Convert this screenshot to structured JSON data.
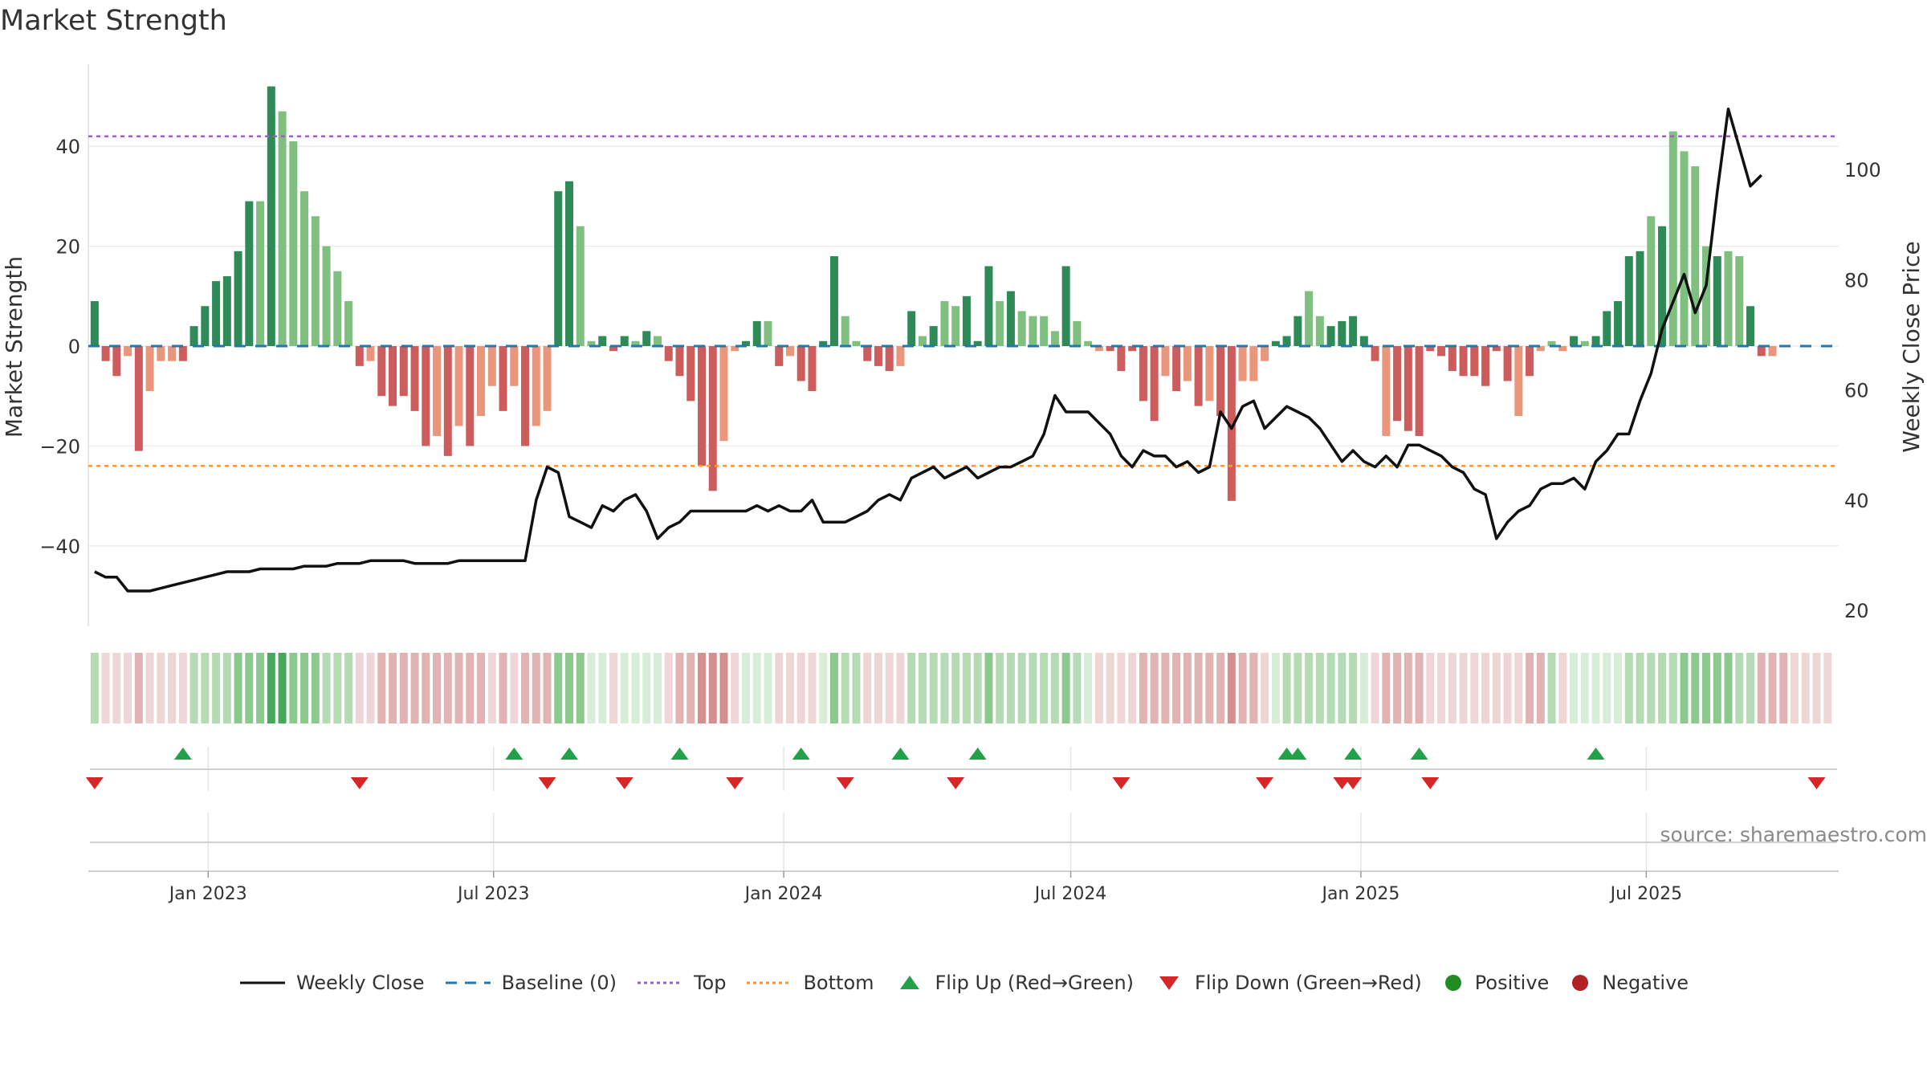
{
  "page": {
    "title": "Market Strength",
    "source": "source: sharemaestro.com"
  },
  "colors": {
    "pos_strong": "#2e8b57",
    "pos_weak": "#7fbf7f",
    "neg_strong": "#cd5c5c",
    "neg_weak": "#e9967a",
    "close": "#111111",
    "baseline": "#1f77b4",
    "top": "#9467bd",
    "bottom": "#ff9933",
    "flip_up": "#22a04a",
    "flip_down": "#d62728",
    "positive": "#228b22",
    "negative": "#b22222"
  },
  "chart_data": {
    "type": "bar",
    "title": "Market Strength",
    "ylabel": "Market Strength",
    "y2label": "Weekly Close Price",
    "ylim": [
      -56,
      56
    ],
    "y2lim": [
      15,
      120
    ],
    "yticks": [
      "40",
      "20",
      "0",
      "−40"
    ],
    "yticks_extra": [
      "−20"
    ],
    "y2ticks": [
      "100",
      "80",
      "60",
      "40",
      "20"
    ],
    "top_line": 42,
    "bottom_line": -24,
    "x_start": "2022-10-17",
    "x_end": "2025-10-31",
    "xticks": [
      {
        "date": "2023-01-01",
        "label": "Jan 2023"
      },
      {
        "date": "2023-07-01",
        "label": "Jul 2023"
      },
      {
        "date": "2024-01-01",
        "label": "Jan 2024"
      },
      {
        "date": "2024-07-01",
        "label": "Jul 2024"
      },
      {
        "date": "2025-01-01",
        "label": "Jan 2025"
      },
      {
        "date": "2025-07-01",
        "label": "Jul 2025"
      }
    ],
    "week_dates": [
      "2022-10-21",
      "2022-10-28",
      "2022-11-04",
      "2022-11-11",
      "2022-11-18",
      "2022-11-25",
      "2022-12-02",
      "2022-12-09",
      "2022-12-16",
      "2022-12-23",
      "2022-12-30",
      "2023-01-06",
      "2023-01-13",
      "2023-01-20",
      "2023-01-27",
      "2023-02-03",
      "2023-02-10",
      "2023-02-17",
      "2023-02-24",
      "2023-03-03",
      "2023-03-10",
      "2023-03-17",
      "2023-03-24",
      "2023-03-31",
      "2023-04-07",
      "2023-04-14",
      "2023-04-21",
      "2023-04-28",
      "2023-05-05",
      "2023-05-12",
      "2023-05-19",
      "2023-05-26",
      "2023-06-02",
      "2023-06-09",
      "2023-06-16",
      "2023-06-23",
      "2023-06-30",
      "2023-07-07",
      "2023-07-14",
      "2023-07-21",
      "2023-07-28",
      "2023-08-04",
      "2023-08-11",
      "2023-08-18",
      "2023-08-25",
      "2023-09-01",
      "2023-09-08",
      "2023-09-15",
      "2023-09-22",
      "2023-09-29",
      "2023-10-06",
      "2023-10-13",
      "2023-10-20",
      "2023-10-27",
      "2023-11-03",
      "2023-11-10",
      "2023-11-17",
      "2023-11-24",
      "2023-12-01",
      "2023-12-08",
      "2023-12-15",
      "2023-12-22",
      "2023-12-29",
      "2024-01-05",
      "2024-01-12",
      "2024-01-19",
      "2024-01-26",
      "2024-02-02",
      "2024-02-09",
      "2024-02-16",
      "2024-02-23",
      "2024-03-01",
      "2024-03-08",
      "2024-03-15",
      "2024-03-22",
      "2024-03-29",
      "2024-04-05",
      "2024-04-12",
      "2024-04-19",
      "2024-04-26",
      "2024-05-03",
      "2024-05-10",
      "2024-05-17",
      "2024-05-24",
      "2024-05-31",
      "2024-06-07",
      "2024-06-14",
      "2024-06-21",
      "2024-06-28",
      "2024-07-05",
      "2024-07-12",
      "2024-07-19",
      "2024-07-26",
      "2024-08-02",
      "2024-08-09",
      "2024-08-16",
      "2024-08-23",
      "2024-08-30",
      "2024-09-06",
      "2024-09-13",
      "2024-09-20",
      "2024-09-27",
      "2024-10-04",
      "2024-10-11",
      "2024-10-18",
      "2024-10-25",
      "2024-11-01",
      "2024-11-08",
      "2024-11-15",
      "2024-11-22",
      "2024-11-29",
      "2024-12-06",
      "2024-12-13",
      "2024-12-20",
      "2024-12-27",
      "2025-01-03",
      "2025-01-10",
      "2025-01-17",
      "2025-01-24",
      "2025-01-31",
      "2025-02-07",
      "2025-02-14",
      "2025-02-21",
      "2025-02-28",
      "2025-03-07",
      "2025-03-14",
      "2025-03-21",
      "2025-03-28",
      "2025-04-04",
      "2025-04-11",
      "2025-04-18",
      "2025-04-25",
      "2025-05-02",
      "2025-05-09",
      "2025-05-16",
      "2025-05-23",
      "2025-05-30",
      "2025-06-06",
      "2025-06-13",
      "2025-06-20",
      "2025-06-27",
      "2025-07-04",
      "2025-07-11",
      "2025-07-18",
      "2025-07-25",
      "2025-08-01",
      "2025-08-08",
      "2025-08-15",
      "2025-08-22",
      "2025-08-29",
      "2025-09-05",
      "2025-09-12",
      "2025-09-19",
      "2025-09-26",
      "2025-10-03",
      "2025-10-10",
      "2025-10-17",
      "2025-10-24"
    ],
    "strength": [
      9,
      -3,
      -6,
      -2,
      -21,
      -9,
      -3,
      -3,
      -3,
      4,
      8,
      13,
      14,
      19,
      29,
      29,
      52,
      47,
      41,
      31,
      26,
      20,
      15,
      9,
      -4,
      -3,
      -10,
      -12,
      -10,
      -13,
      -20,
      -18,
      -22,
      -16,
      -20,
      -14,
      -8,
      -13,
      -8,
      -20,
      -16,
      -13,
      31,
      33,
      24,
      1,
      2,
      -1,
      2,
      1,
      3,
      2,
      -3,
      -6,
      -11,
      -24,
      -29,
      -19,
      -1,
      1,
      5,
      5,
      -4,
      -2,
      -7,
      -9,
      1,
      18,
      6,
      1,
      -3,
      -4,
      -5,
      -4,
      7,
      2,
      4,
      9,
      8,
      10,
      1,
      16,
      9,
      11,
      7,
      6,
      6,
      3,
      16,
      5,
      1,
      -1,
      -1,
      -5,
      -1,
      -11,
      -15,
      -6,
      -9,
      -7,
      -12,
      -11,
      -14,
      -31,
      -7,
      -7,
      -3,
      1,
      2,
      6,
      11,
      6,
      4,
      5,
      6,
      2,
      -3,
      -18,
      -15,
      -17,
      -18,
      -1,
      -2,
      -5,
      -6,
      -6,
      -8,
      -1,
      -7,
      -14,
      -6,
      -1,
      1,
      -1,
      2,
      1,
      2,
      7,
      9,
      18,
      19,
      26,
      24,
      43,
      39,
      36,
      20,
      18,
      19,
      18,
      8,
      -2,
      -2
    ],
    "bar_shade": [
      "s",
      "s",
      "s",
      "w",
      "s",
      "w",
      "w",
      "w",
      "s",
      "s",
      "s",
      "s",
      "s",
      "s",
      "s",
      "w",
      "s",
      "w",
      "w",
      "w",
      "w",
      "w",
      "w",
      "w",
      "s",
      "w",
      "s",
      "s",
      "s",
      "s",
      "s",
      "w",
      "s",
      "w",
      "s",
      "w",
      "w",
      "s",
      "w",
      "s",
      "w",
      "w",
      "s",
      "s",
      "w",
      "w",
      "s",
      "s",
      "s",
      "w",
      "s",
      "w",
      "s",
      "s",
      "s",
      "s",
      "s",
      "w",
      "w",
      "s",
      "s",
      "w",
      "s",
      "w",
      "s",
      "s",
      "s",
      "s",
      "w",
      "w",
      "s",
      "s",
      "s",
      "w",
      "s",
      "w",
      "s",
      "w",
      "w",
      "s",
      "s",
      "s",
      "w",
      "s",
      "w",
      "w",
      "w",
      "w",
      "s",
      "w",
      "w",
      "w",
      "s",
      "s",
      "s",
      "s",
      "s",
      "w",
      "s",
      "w",
      "s",
      "w",
      "s",
      "s",
      "w",
      "w",
      "w",
      "s",
      "s",
      "s",
      "w",
      "w",
      "s",
      "s",
      "s",
      "s",
      "s",
      "w",
      "s",
      "s",
      "s",
      "s",
      "s",
      "s",
      "s",
      "s",
      "s",
      "s",
      "s",
      "w",
      "s",
      "w",
      "w",
      "w",
      "s",
      "w",
      "s",
      "s",
      "s",
      "s",
      "s",
      "w",
      "s",
      "w",
      "w",
      "w",
      "w",
      "s",
      "w",
      "w",
      "s",
      "s"
    ],
    "close": [
      27,
      26,
      26,
      23.5,
      23.5,
      23.5,
      24,
      24.5,
      25,
      25.5,
      26,
      26.5,
      27,
      27,
      27,
      27.5,
      27.5,
      27.5,
      27.5,
      28,
      28,
      28,
      28.5,
      28.5,
      28.5,
      29,
      29,
      29,
      29,
      28.5,
      28.5,
      28.5,
      28.5,
      29,
      29,
      29,
      29,
      29,
      29,
      29,
      40,
      46,
      45,
      37,
      36,
      35,
      39,
      38,
      40,
      41,
      38,
      33,
      35,
      36,
      38,
      38,
      38,
      38,
      38,
      38,
      39,
      38,
      39,
      38,
      38,
      40,
      36,
      36,
      36,
      37,
      38,
      40,
      41,
      40,
      44,
      45,
      46,
      44,
      45,
      46,
      44,
      45,
      46,
      46,
      47,
      48,
      52,
      59,
      56,
      56,
      56,
      54,
      52,
      48,
      46,
      49,
      48,
      48,
      46,
      47,
      45,
      46,
      56,
      53,
      57,
      58,
      53,
      55,
      57,
      56,
      55,
      53,
      50,
      47,
      49,
      47,
      46,
      48,
      46,
      50,
      50,
      49,
      48,
      46,
      45,
      42,
      41,
      33,
      36,
      38,
      39,
      42,
      43,
      43,
      44,
      42,
      47,
      49,
      52,
      52,
      58,
      63,
      71,
      76,
      81,
      74,
      79,
      96,
      111,
      104,
      97,
      99
    ]
  },
  "ribbon": {
    "level": [
      2,
      1,
      1,
      1,
      2,
      1,
      1,
      1,
      1,
      2,
      2,
      2,
      2,
      3,
      3,
      3,
      4,
      4,
      3,
      3,
      3,
      2,
      2,
      2,
      1,
      1,
      2,
      2,
      2,
      2,
      2,
      2,
      2,
      2,
      2,
      2,
      1,
      2,
      1,
      2,
      2,
      2,
      3,
      3,
      3,
      1,
      1,
      1,
      1,
      1,
      1,
      1,
      1,
      2,
      2,
      3,
      3,
      3,
      1,
      1,
      1,
      1,
      1,
      1,
      1,
      1,
      1,
      3,
      2,
      2,
      1,
      1,
      1,
      1,
      2,
      2,
      2,
      2,
      2,
      2,
      2,
      3,
      2,
      2,
      2,
      2,
      2,
      2,
      3,
      2,
      1,
      1,
      1,
      1,
      1,
      2,
      2,
      2,
      2,
      2,
      2,
      2,
      2,
      3,
      2,
      2,
      1,
      1,
      2,
      2,
      2,
      2,
      2,
      2,
      2,
      1,
      1,
      2,
      2,
      2,
      2,
      1,
      1,
      1,
      1,
      1,
      1,
      1,
      1,
      1,
      2,
      2,
      2,
      1,
      1,
      1,
      1,
      1,
      1,
      2,
      2,
      2,
      2,
      2,
      3,
      3,
      3,
      3,
      3,
      2,
      2,
      2,
      2,
      2,
      1,
      1
    ]
  },
  "flips": {
    "up": [
      "2022-12-16",
      "2023-07-14",
      "2023-08-18",
      "2023-10-27",
      "2024-01-12",
      "2024-03-15",
      "2024-05-03",
      "2024-11-15",
      "2024-11-22",
      "2024-12-27",
      "2025-02-07",
      "2025-05-30"
    ],
    "down": [
      "2022-10-21",
      "2023-04-07",
      "2023-08-04",
      "2023-09-22",
      "2023-12-01",
      "2024-02-09",
      "2024-04-19",
      "2024-08-02",
      "2024-11-01",
      "2024-12-20",
      "2024-12-27",
      "2025-02-14",
      "2025-10-17"
    ]
  },
  "legend": [
    {
      "kind": "line-solid",
      "label": "Weekly Close",
      "color": "#111111"
    },
    {
      "kind": "line-dash",
      "label": "Baseline (0)",
      "color": "#1f77b4"
    },
    {
      "kind": "line-dot",
      "label": "Top",
      "color": "#9467bd"
    },
    {
      "kind": "line-dot",
      "label": "Bottom",
      "color": "#ff9933"
    },
    {
      "kind": "tri-up",
      "label": "Flip Up (Red→Green)",
      "color": "#22a04a"
    },
    {
      "kind": "tri-down",
      "label": "Flip Down (Green→Red)",
      "color": "#d62728"
    },
    {
      "kind": "dot",
      "label": "Positive",
      "color": "#228b22"
    },
    {
      "kind": "dot",
      "label": "Negative",
      "color": "#b22222"
    }
  ]
}
